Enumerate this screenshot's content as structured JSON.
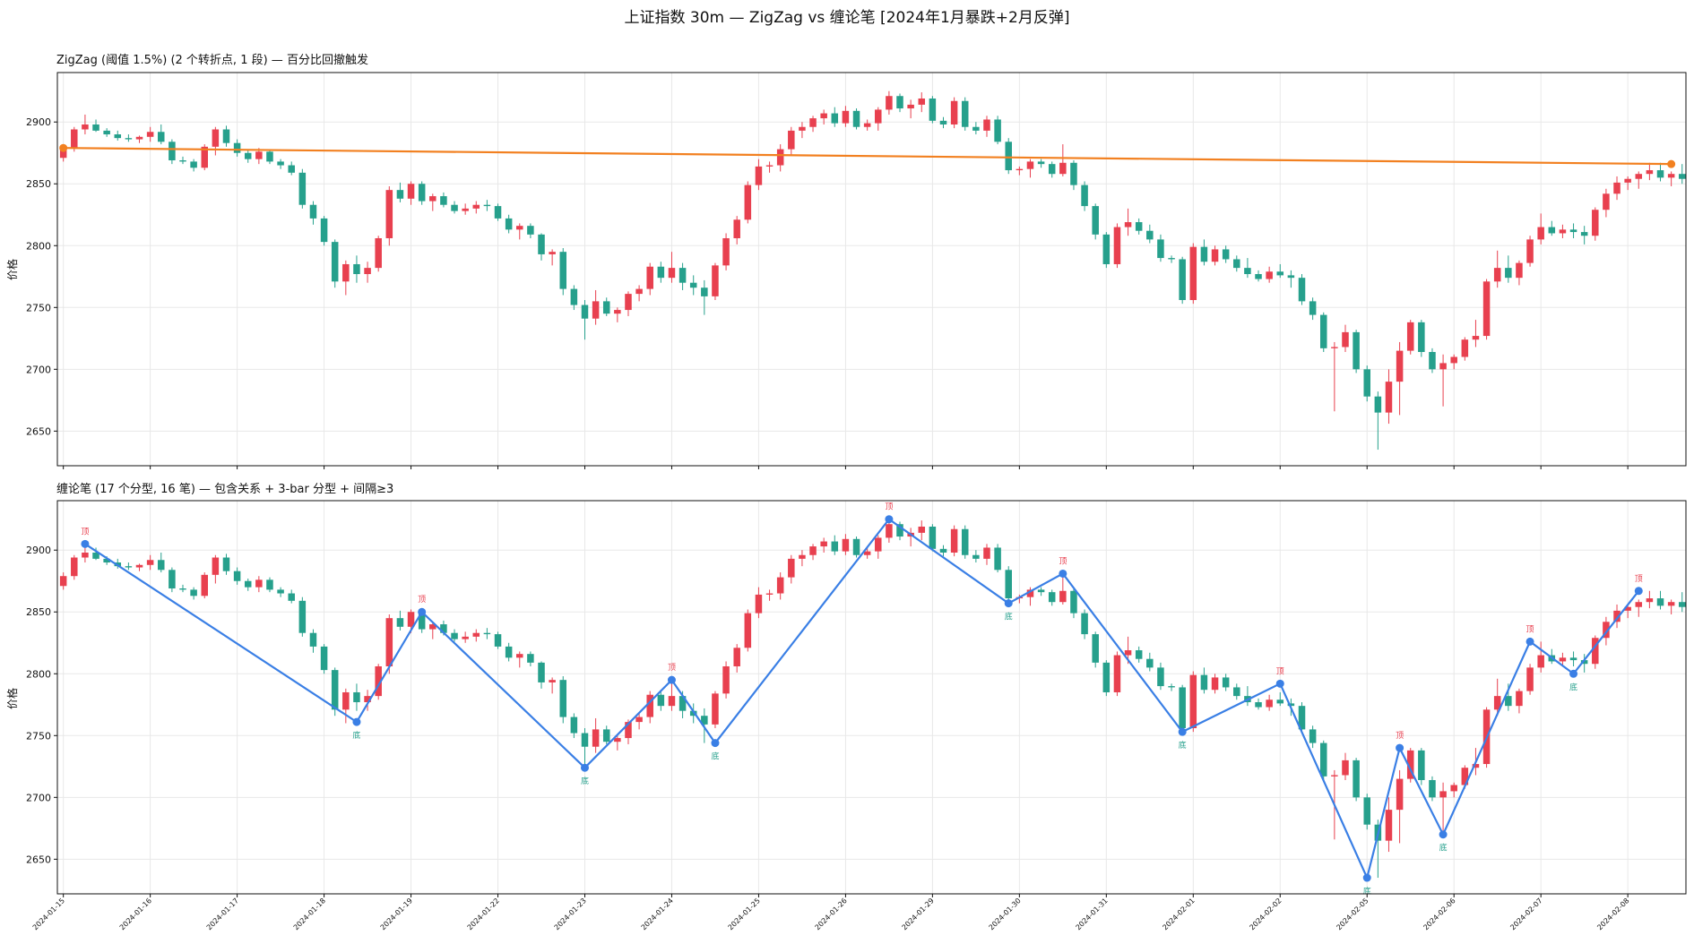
{
  "figure": {
    "suptitle": "上证指数 30m — ZigZag vs 缠论笔 [2024年1月暴跌+2月反弹]"
  },
  "colors": {
    "up": "#e8404f",
    "down": "#26a08c",
    "zigzag_line": "#f28020",
    "zigzag_point": "#f28020",
    "bi_line": "#3a7fe5",
    "top_label": "#e8404f",
    "bottom_label": "#26a08c"
  },
  "chart_data": [
    {
      "type": "candlestick+line",
      "title": "ZigZag (阈值 1.5%)   (2 个转折点, 1 段)  — 百分比回撤触发",
      "ylabel": "价格",
      "ylim": [
        2622,
        2940
      ],
      "yticks": [
        2650,
        2700,
        2750,
        2800,
        2850,
        2900
      ],
      "overlay": {
        "name": "ZigZag",
        "points": [
          {
            "bar": 0,
            "price": 2879
          },
          {
            "bar": 148,
            "price": 2866
          }
        ]
      }
    },
    {
      "type": "candlestick+line",
      "title": "缠论笔   (17 个分型, 16 笔)  — 包含关系 + 3-bar 分型 + 间隔≥3",
      "ylabel": "价格",
      "ylim": [
        2622,
        2940
      ],
      "yticks": [
        2650,
        2700,
        2750,
        2800,
        2850,
        2900
      ],
      "top_label": "顶",
      "bottom_label": "底",
      "overlay": {
        "name": "缠论笔",
        "points": [
          {
            "bar": 2,
            "price": 2905,
            "kind": "top"
          },
          {
            "bar": 27,
            "price": 2761,
            "kind": "bottom"
          },
          {
            "bar": 33,
            "price": 2850,
            "kind": "top"
          },
          {
            "bar": 48,
            "price": 2724,
            "kind": "bottom"
          },
          {
            "bar": 56,
            "price": 2795,
            "kind": "top"
          },
          {
            "bar": 60,
            "price": 2744,
            "kind": "bottom"
          },
          {
            "bar": 76,
            "price": 2925,
            "kind": "top"
          },
          {
            "bar": 87,
            "price": 2857,
            "kind": "bottom"
          },
          {
            "bar": 92,
            "price": 2881,
            "kind": "top"
          },
          {
            "bar": 103,
            "price": 2753,
            "kind": "bottom"
          },
          {
            "bar": 112,
            "price": 2792,
            "kind": "top"
          },
          {
            "bar": 120,
            "price": 2635,
            "kind": "bottom"
          },
          {
            "bar": 123,
            "price": 2740,
            "kind": "top"
          },
          {
            "bar": 127,
            "price": 2670,
            "kind": "bottom"
          },
          {
            "bar": 135,
            "price": 2826,
            "kind": "top"
          },
          {
            "bar": 139,
            "price": 2800,
            "kind": "bottom"
          },
          {
            "bar": 145,
            "price": 2867,
            "kind": "top"
          }
        ]
      }
    }
  ],
  "shared_x": {
    "bar_count": 150,
    "date_ticks": [
      {
        "bar": 0,
        "label": "2024-01-15"
      },
      {
        "bar": 8,
        "label": "2024-01-16"
      },
      {
        "bar": 16,
        "label": "2024-01-17"
      },
      {
        "bar": 24,
        "label": "2024-01-18"
      },
      {
        "bar": 32,
        "label": "2024-01-19"
      },
      {
        "bar": 40,
        "label": "2024-01-22"
      },
      {
        "bar": 48,
        "label": "2024-01-23"
      },
      {
        "bar": 56,
        "label": "2024-01-24"
      },
      {
        "bar": 64,
        "label": "2024-01-25"
      },
      {
        "bar": 72,
        "label": "2024-01-26"
      },
      {
        "bar": 80,
        "label": "2024-01-29"
      },
      {
        "bar": 88,
        "label": "2024-01-30"
      },
      {
        "bar": 96,
        "label": "2024-01-31"
      },
      {
        "bar": 104,
        "label": "2024-02-01"
      },
      {
        "bar": 112,
        "label": "2024-02-02"
      },
      {
        "bar": 120,
        "label": "2024-02-05"
      },
      {
        "bar": 128,
        "label": "2024-02-06"
      },
      {
        "bar": 136,
        "label": "2024-02-07"
      },
      {
        "bar": 144,
        "label": "2024-02-08"
      }
    ],
    "candles": [
      [
        2871,
        2882,
        2868,
        2879
      ],
      [
        2879,
        2896,
        2876,
        2894
      ],
      [
        2894,
        2906,
        2890,
        2898
      ],
      [
        2898,
        2902,
        2892,
        2893
      ],
      [
        2893,
        2895,
        2888,
        2890
      ],
      [
        2890,
        2893,
        2885,
        2887
      ],
      [
        2887,
        2890,
        2884,
        2886
      ],
      [
        2886,
        2889,
        2883,
        2888
      ],
      [
        2888,
        2896,
        2884,
        2892
      ],
      [
        2892,
        2898,
        2882,
        2884
      ],
      [
        2884,
        2886,
        2866,
        2869
      ],
      [
        2869,
        2872,
        2866,
        2868
      ],
      [
        2868,
        2870,
        2860,
        2863
      ],
      [
        2863,
        2882,
        2861,
        2880
      ],
      [
        2880,
        2896,
        2873,
        2894
      ],
      [
        2894,
        2897,
        2880,
        2883
      ],
      [
        2883,
        2886,
        2872,
        2875
      ],
      [
        2875,
        2877,
        2867,
        2870
      ],
      [
        2870,
        2879,
        2866,
        2876
      ],
      [
        2876,
        2878,
        2866,
        2868
      ],
      [
        2868,
        2870,
        2862,
        2865
      ],
      [
        2865,
        2868,
        2857,
        2859
      ],
      [
        2859,
        2862,
        2830,
        2833
      ],
      [
        2833,
        2836,
        2817,
        2822
      ],
      [
        2822,
        2824,
        2800,
        2803
      ],
      [
        2803,
        2805,
        2766,
        2771
      ],
      [
        2771,
        2788,
        2760,
        2785
      ],
      [
        2785,
        2792,
        2770,
        2777
      ],
      [
        2777,
        2787,
        2770,
        2782
      ],
      [
        2782,
        2808,
        2779,
        2806
      ],
      [
        2806,
        2848,
        2800,
        2845
      ],
      [
        2845,
        2851,
        2835,
        2838
      ],
      [
        2838,
        2852,
        2833,
        2850
      ],
      [
        2850,
        2852,
        2833,
        2836
      ],
      [
        2836,
        2842,
        2828,
        2840
      ],
      [
        2840,
        2843,
        2831,
        2833
      ],
      [
        2833,
        2836,
        2826,
        2828
      ],
      [
        2828,
        2834,
        2825,
        2830
      ],
      [
        2830,
        2836,
        2826,
        2833
      ],
      [
        2833,
        2837,
        2828,
        2832
      ],
      [
        2832,
        2834,
        2820,
        2822
      ],
      [
        2822,
        2825,
        2810,
        2813
      ],
      [
        2813,
        2818,
        2805,
        2816
      ],
      [
        2816,
        2818,
        2806,
        2809
      ],
      [
        2809,
        2810,
        2788,
        2793
      ],
      [
        2793,
        2797,
        2784,
        2795
      ],
      [
        2795,
        2798,
        2760,
        2765
      ],
      [
        2765,
        2768,
        2748,
        2752
      ],
      [
        2752,
        2756,
        2724,
        2741
      ],
      [
        2741,
        2764,
        2736,
        2755
      ],
      [
        2755,
        2758,
        2743,
        2745
      ],
      [
        2745,
        2750,
        2738,
        2748
      ],
      [
        2748,
        2763,
        2743,
        2761
      ],
      [
        2761,
        2768,
        2755,
        2765
      ],
      [
        2765,
        2786,
        2760,
        2783
      ],
      [
        2783,
        2787,
        2770,
        2774
      ],
      [
        2774,
        2795,
        2770,
        2782
      ],
      [
        2782,
        2786,
        2764,
        2770
      ],
      [
        2770,
        2776,
        2760,
        2766
      ],
      [
        2766,
        2772,
        2744,
        2759
      ],
      [
        2759,
        2786,
        2756,
        2784
      ],
      [
        2784,
        2810,
        2780,
        2806
      ],
      [
        2806,
        2824,
        2801,
        2821
      ],
      [
        2821,
        2852,
        2818,
        2849
      ],
      [
        2849,
        2870,
        2845,
        2864
      ],
      [
        2864,
        2868,
        2859,
        2865
      ],
      [
        2865,
        2882,
        2860,
        2878
      ],
      [
        2878,
        2896,
        2873,
        2893
      ],
      [
        2893,
        2900,
        2887,
        2896
      ],
      [
        2896,
        2905,
        2892,
        2903
      ],
      [
        2903,
        2910,
        2898,
        2907
      ],
      [
        2907,
        2912,
        2896,
        2899
      ],
      [
        2899,
        2913,
        2896,
        2909
      ],
      [
        2909,
        2911,
        2894,
        2896
      ],
      [
        2896,
        2902,
        2893,
        2899
      ],
      [
        2899,
        2912,
        2893,
        2910
      ],
      [
        2910,
        2925,
        2906,
        2921
      ],
      [
        2921,
        2923,
        2908,
        2911
      ],
      [
        2911,
        2918,
        2903,
        2914
      ],
      [
        2914,
        2924,
        2908,
        2919
      ],
      [
        2919,
        2921,
        2899,
        2901
      ],
      [
        2901,
        2904,
        2895,
        2898
      ],
      [
        2898,
        2920,
        2895,
        2917
      ],
      [
        2917,
        2920,
        2893,
        2896
      ],
      [
        2896,
        2900,
        2890,
        2893
      ],
      [
        2893,
        2905,
        2888,
        2902
      ],
      [
        2902,
        2905,
        2882,
        2884
      ],
      [
        2884,
        2887,
        2858,
        2861
      ],
      [
        2861,
        2864,
        2857,
        2862
      ],
      [
        2862,
        2870,
        2855,
        2868
      ],
      [
        2868,
        2870,
        2863,
        2866
      ],
      [
        2866,
        2868,
        2855,
        2858
      ],
      [
        2858,
        2882,
        2856,
        2867
      ],
      [
        2867,
        2869,
        2845,
        2849
      ],
      [
        2849,
        2852,
        2828,
        2832
      ],
      [
        2832,
        2834,
        2805,
        2809
      ],
      [
        2809,
        2811,
        2782,
        2785
      ],
      [
        2785,
        2818,
        2782,
        2815
      ],
      [
        2815,
        2830,
        2808,
        2819
      ],
      [
        2819,
        2822,
        2809,
        2812
      ],
      [
        2812,
        2817,
        2802,
        2805
      ],
      [
        2805,
        2809,
        2787,
        2790
      ],
      [
        2790,
        2792,
        2786,
        2789
      ],
      [
        2789,
        2791,
        2753,
        2756
      ],
      [
        2756,
        2802,
        2753,
        2799
      ],
      [
        2799,
        2805,
        2784,
        2787
      ],
      [
        2787,
        2800,
        2784,
        2797
      ],
      [
        2797,
        2800,
        2786,
        2789
      ],
      [
        2789,
        2792,
        2779,
        2782
      ],
      [
        2782,
        2790,
        2774,
        2777
      ],
      [
        2777,
        2780,
        2771,
        2773
      ],
      [
        2773,
        2783,
        2770,
        2779
      ],
      [
        2779,
        2785,
        2774,
        2776
      ],
      [
        2776,
        2780,
        2766,
        2774
      ],
      [
        2774,
        2777,
        2752,
        2755
      ],
      [
        2755,
        2758,
        2740,
        2744
      ],
      [
        2744,
        2746,
        2714,
        2717
      ],
      [
        2717,
        2722,
        2666,
        2718
      ],
      [
        2718,
        2736,
        2714,
        2730
      ],
      [
        2730,
        2732,
        2697,
        2700
      ],
      [
        2700,
        2703,
        2674,
        2678
      ],
      [
        2678,
        2682,
        2635,
        2665
      ],
      [
        2665,
        2700,
        2656,
        2690
      ],
      [
        2690,
        2722,
        2663,
        2715
      ],
      [
        2715,
        2740,
        2712,
        2738
      ],
      [
        2738,
        2740,
        2710,
        2714
      ],
      [
        2714,
        2717,
        2697,
        2700
      ],
      [
        2700,
        2712,
        2670,
        2705
      ],
      [
        2705,
        2712,
        2700,
        2710
      ],
      [
        2710,
        2726,
        2707,
        2724
      ],
      [
        2724,
        2740,
        2718,
        2727
      ],
      [
        2727,
        2773,
        2724,
        2771
      ],
      [
        2771,
        2796,
        2766,
        2782
      ],
      [
        2782,
        2792,
        2770,
        2774
      ],
      [
        2774,
        2788,
        2768,
        2786
      ],
      [
        2786,
        2808,
        2783,
        2805
      ],
      [
        2805,
        2826,
        2801,
        2815
      ],
      [
        2815,
        2820,
        2808,
        2810
      ],
      [
        2810,
        2817,
        2806,
        2813
      ],
      [
        2813,
        2818,
        2806,
        2811
      ],
      [
        2811,
        2816,
        2801,
        2808
      ],
      [
        2808,
        2831,
        2804,
        2829
      ],
      [
        2829,
        2846,
        2823,
        2842
      ],
      [
        2842,
        2856,
        2837,
        2851
      ],
      [
        2851,
        2856,
        2845,
        2854
      ],
      [
        2854,
        2860,
        2846,
        2858
      ],
      [
        2858,
        2867,
        2853,
        2861
      ],
      [
        2861,
        2867,
        2852,
        2855
      ],
      [
        2855,
        2860,
        2848,
        2858
      ],
      [
        2858,
        2866,
        2850,
        2854
      ]
    ]
  }
}
